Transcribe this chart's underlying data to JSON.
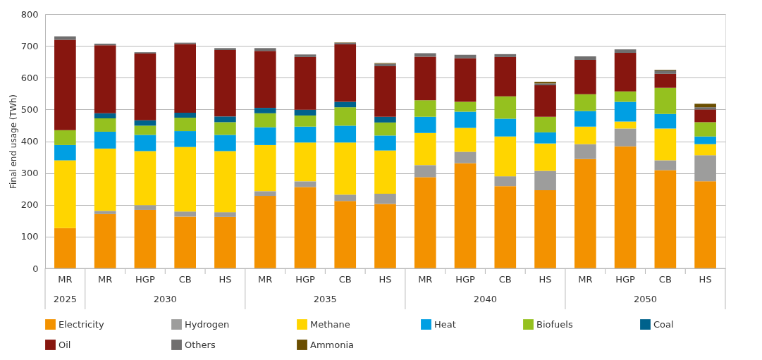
{
  "chart_data": {
    "type": "bar",
    "stacked": true,
    "ylabel": "Final end usage (TWh)",
    "categories": [
      "MR",
      "MR",
      "HGP",
      "CB",
      "HS",
      "MR",
      "HGP",
      "CB",
      "HS",
      "MR",
      "HGP",
      "CB",
      "HS",
      "MR",
      "HGP",
      "CB",
      "HS"
    ],
    "annotations": [
      "2025",
      "2030",
      "2035",
      "2040",
      "2050"
    ],
    "ylim": [
      0,
      800
    ],
    "yticks": [
      0,
      100,
      200,
      300,
      400,
      500,
      600,
      700,
      800
    ],
    "grid": "y",
    "legend": "bottom",
    "series": [
      {
        "name": "Electricity",
        "color": "#f39200",
        "values": [
          127,
          171,
          184,
          163,
          162,
          228,
          256,
          212,
          203,
          287,
          331,
          259,
          246,
          344,
          384,
          309,
          274
        ]
      },
      {
        "name": "Hydrogen",
        "color": "#9d9d9c",
        "values": [
          null,
          10,
          15,
          16,
          15,
          15,
          18,
          20,
          32,
          38,
          36,
          31,
          61,
          47,
          56,
          31,
          82
        ]
      },
      {
        "name": "Methane",
        "color": "#ffd500",
        "values": [
          213,
          196,
          170,
          203,
          192,
          145,
          122,
          164,
          136,
          101,
          75,
          125,
          86,
          55,
          22,
          100,
          35
        ]
      },
      {
        "name": "Heat",
        "color": "#009fe3",
        "values": [
          48,
          53,
          51,
          50,
          51,
          56,
          50,
          53,
          47,
          51,
          51,
          56,
          35,
          49,
          62,
          46,
          24
        ]
      },
      {
        "name": "Biofuels",
        "color": "#95c11f",
        "values": [
          47,
          42,
          29,
          42,
          40,
          44,
          35,
          58,
          41,
          52,
          31,
          70,
          49,
          53,
          33,
          82,
          45
        ]
      },
      {
        "name": "Coal",
        "color": "#00628c",
        "values": [
          null,
          16,
          17,
          16,
          18,
          17,
          18,
          17,
          18,
          null,
          null,
          null,
          null,
          null,
          null,
          null,
          null
        ]
      },
      {
        "name": "Oil",
        "color": "#87160f",
        "values": [
          284,
          214,
          210,
          216,
          209,
          179,
          166,
          181,
          159,
          137,
          137,
          124,
          99,
          108,
          121,
          44,
          40
        ]
      },
      {
        "name": "Others",
        "color": "#706f6f",
        "values": [
          11,
          5,
          4,
          4,
          6,
          9,
          8,
          5,
          8,
          11,
          11,
          9,
          6,
          11,
          11,
          11,
          7
        ]
      },
      {
        "name": "Ammonia",
        "color": "#6b4e00",
        "values": [
          null,
          null,
          null,
          null,
          null,
          null,
          null,
          1,
          2,
          null,
          null,
          null,
          5,
          null,
          null,
          2,
          11
        ]
      }
    ]
  }
}
